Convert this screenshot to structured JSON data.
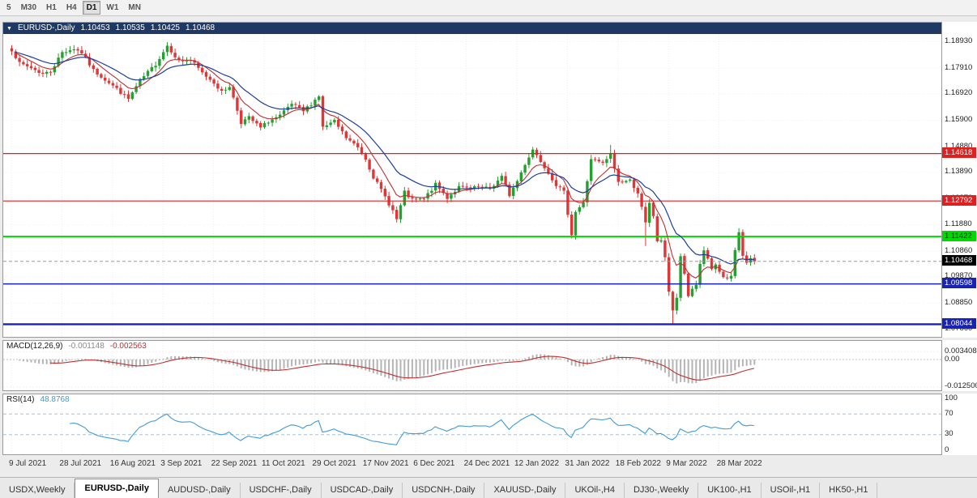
{
  "icons": {
    "chevron_down": "▼"
  },
  "toolbar": {
    "timeframes": [
      "5",
      "M30",
      "H1",
      "H4",
      "D1",
      "W1",
      "MN"
    ],
    "active_timeframe": "D1"
  },
  "chart": {
    "title": {
      "symbol": "EURUSD-,Daily",
      "open": "1.10453",
      "high": "1.10535",
      "low": "1.10425",
      "close": "1.10468"
    },
    "up_color": "#22a12e",
    "down_color": "#e03636",
    "ma_fast_color": "#c03030",
    "ma_slow_color": "#1c3e9e",
    "axis_labels": [
      "1.18930",
      "1.17910",
      "1.16920",
      "1.15900",
      "1.14880",
      "1.13890",
      "1.12870",
      "1.11880",
      "1.10860",
      "1.09870",
      "1.08850",
      "1.07860"
    ],
    "levels": [
      {
        "price": 1.14618,
        "label": "1.14618",
        "color": "#e02020",
        "text": "#ffffff",
        "width": 1.2
      },
      {
        "price": 1.12792,
        "label": "1.12792",
        "color": "#e02020",
        "text": "#ffffff",
        "width": 1.2
      },
      {
        "price": 1.11422,
        "label": "1.11422",
        "color": "#00d800",
        "text": "#003300",
        "width": 2
      },
      {
        "price": 1.09598,
        "label": "1.09598",
        "color": "#1822b4",
        "text": "#ffffff",
        "width": 1.4
      },
      {
        "price": 1.08044,
        "label": "1.08044",
        "color": "#1822b4",
        "text": "#ffffff",
        "width": 2.4
      }
    ],
    "current_price": {
      "price": 1.10468,
      "label": "1.10468",
      "color": "#000000",
      "text": "#ffffff"
    }
  },
  "macd": {
    "name": "MACD(12,26,9)",
    "main_value": "-0.001148",
    "signal_value": "-0.002563",
    "signal_color": "#c03030",
    "histogram_color": "#b4b4b4",
    "axis": [
      {
        "label": "0.003408",
        "value": 0.003408
      },
      {
        "label": "0.00",
        "value": 0
      },
      {
        "label": "-0.012500",
        "value": -0.0125
      }
    ]
  },
  "rsi": {
    "name": "RSI(14)",
    "value": "48.8768",
    "line_color": "#3f9bd8",
    "axis": [
      {
        "label": "100",
        "value": 100
      },
      {
        "label": "70",
        "value": 70
      },
      {
        "label": "30",
        "value": 30
      },
      {
        "label": "0",
        "value": 0
      }
    ],
    "levels": [
      70,
      30
    ]
  },
  "dates": [
    "9 Jul 2021",
    "28 Jul 2021",
    "16 Aug 2021",
    "3 Sep 2021",
    "22 Sep 2021",
    "11 Oct 2021",
    "29 Oct 2021",
    "17 Nov 2021",
    "6 Dec 2021",
    "24 Dec 2021",
    "12 Jan 2022",
    "31 Jan 2022",
    "18 Feb 2022",
    "9 Mar 2022",
    "28 Mar 2022"
  ],
  "tabs": [
    {
      "label": "USDX,Weekly",
      "active": false
    },
    {
      "label": "EURUSD-,Daily",
      "active": true
    },
    {
      "label": "AUDUSD-,Daily",
      "active": false
    },
    {
      "label": "USDCHF-,Daily",
      "active": false
    },
    {
      "label": "USDCAD-,Daily",
      "active": false
    },
    {
      "label": "USDCNH-,Daily",
      "active": false
    },
    {
      "label": "XAUUSD-,Daily",
      "active": false
    },
    {
      "label": "UKOil-,H4",
      "active": false
    },
    {
      "label": "DJ30-,Weekly",
      "active": false
    },
    {
      "label": "UK100-,H1",
      "active": false
    },
    {
      "label": "USOil-,H1",
      "active": false
    },
    {
      "label": "HK50-,H1",
      "active": false
    }
  ],
  "chart_data": {
    "type": "candlestick",
    "symbol": "EURUSD-",
    "timeframe": "Daily",
    "bar_count": 192,
    "last_close": 1.10468,
    "price_range": [
      1.0756,
      1.1922
    ],
    "close_anchors": [
      [
        0,
        1.1862
      ],
      [
        2,
        1.1808
      ],
      [
        5,
        1.1792
      ],
      [
        8,
        1.1768
      ],
      [
        10,
        1.1778
      ],
      [
        13,
        1.1852
      ],
      [
        16,
        1.1866
      ],
      [
        18,
        1.185
      ],
      [
        21,
        1.1782
      ],
      [
        25,
        1.1736
      ],
      [
        30,
        1.1672
      ],
      [
        33,
        1.1742
      ],
      [
        37,
        1.1806
      ],
      [
        40,
        1.1878
      ],
      [
        43,
        1.1818
      ],
      [
        46,
        1.1822
      ],
      [
        49,
        1.1772
      ],
      [
        52,
        1.1736
      ],
      [
        54,
        1.1698
      ],
      [
        56,
        1.1722
      ],
      [
        59,
        1.1582
      ],
      [
        61,
        1.16
      ],
      [
        64,
        1.156
      ],
      [
        66,
        1.1586
      ],
      [
        69,
        1.1606
      ],
      [
        72,
        1.1652
      ],
      [
        75,
        1.1624
      ],
      [
        79,
        1.1684
      ],
      [
        80,
        1.1562
      ],
      [
        83,
        1.1585
      ],
      [
        86,
        1.1522
      ],
      [
        89,
        1.1485
      ],
      [
        91,
        1.1442
      ],
      [
        93,
        1.1372
      ],
      [
        96,
        1.1295
      ],
      [
        98,
        1.1242
      ],
      [
        99,
        1.1208
      ],
      [
        101,
        1.1312
      ],
      [
        103,
        1.1282
      ],
      [
        106,
        1.1286
      ],
      [
        109,
        1.1342
      ],
      [
        112,
        1.1292
      ],
      [
        115,
        1.1332
      ],
      [
        118,
        1.1326
      ],
      [
        120,
        1.1332
      ],
      [
        123,
        1.1326
      ],
      [
        126,
        1.1372
      ],
      [
        128,
        1.1302
      ],
      [
        130,
        1.1356
      ],
      [
        132,
        1.1422
      ],
      [
        134,
        1.1478
      ],
      [
        137,
        1.1412
      ],
      [
        140,
        1.1342
      ],
      [
        142,
        1.1312
      ],
      [
        144,
        1.1152
      ],
      [
        145,
        1.1238
      ],
      [
        147,
        1.1272
      ],
      [
        149,
        1.1442
      ],
      [
        152,
        1.1422
      ],
      [
        154,
        1.1458
      ],
      [
        156,
        1.1352
      ],
      [
        159,
        1.1358
      ],
      [
        161,
        1.1312
      ],
      [
        163,
        1.1192
      ],
      [
        164,
        1.1268
      ],
      [
        165,
        1.1222
      ],
      [
        166,
        1.1126
      ],
      [
        167,
        1.1122
      ],
      [
        168,
        1.1066
      ],
      [
        169,
        1.0932
      ],
      [
        170,
        1.0858
      ],
      [
        171,
        1.0902
      ],
      [
        172,
        1.1068
      ],
      [
        173,
        1.0992
      ],
      [
        174,
        1.0912
      ],
      [
        175,
        1.0942
      ],
      [
        176,
        1.0958
      ],
      [
        177,
        1.1036
      ],
      [
        178,
        1.1092
      ],
      [
        179,
        1.1052
      ],
      [
        180,
        1.1016
      ],
      [
        181,
        1.1028
      ],
      [
        182,
        1.1002
      ],
      [
        183,
        1.0986
      ],
      [
        184,
        1.0982
      ],
      [
        185,
        1.0988
      ],
      [
        186,
        1.1084
      ],
      [
        187,
        1.1158
      ],
      [
        188,
        1.1066
      ],
      [
        189,
        1.1046
      ],
      [
        190,
        1.1056
      ],
      [
        191,
        1.10468
      ]
    ],
    "wick_high_overrides": {
      "16": 1.187,
      "40": 1.1885,
      "134": 1.1483,
      "154": 1.1495,
      "187": 1.1171
    },
    "wick_low_overrides": {
      "59": 1.1563,
      "163": 1.1106,
      "170": 1.0806
    },
    "moving_averages": [
      {
        "name": "fast",
        "period": 8,
        "color": "#c03030"
      },
      {
        "name": "slow",
        "period": 18,
        "color": "#1c3e9e"
      }
    ],
    "indicators": [
      {
        "name": "MACD",
        "params": "12,26,9",
        "main": -0.001148,
        "signal": -0.002563
      },
      {
        "name": "RSI",
        "params": "14",
        "value": 48.8768
      }
    ]
  }
}
